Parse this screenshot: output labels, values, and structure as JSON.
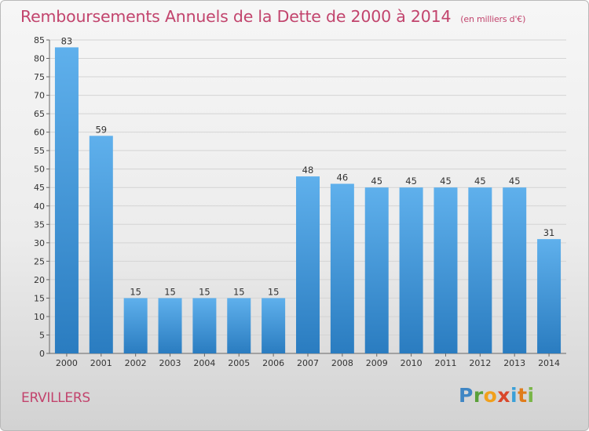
{
  "chart_data": {
    "type": "bar",
    "title": "Remboursements Annuels de la Dette de 2000 à 2014",
    "unit_note": "(en milliers d'€)",
    "categories": [
      "2000",
      "2001",
      "2002",
      "2003",
      "2004",
      "2005",
      "2006",
      "2007",
      "2008",
      "2009",
      "2010",
      "2011",
      "2012",
      "2013",
      "2014"
    ],
    "values": [
      83,
      59,
      15,
      15,
      15,
      15,
      15,
      48,
      46,
      45,
      45,
      45,
      45,
      45,
      31
    ],
    "ylim": [
      0,
      85
    ],
    "yticks": [
      0,
      5,
      10,
      15,
      20,
      25,
      30,
      35,
      40,
      45,
      50,
      55,
      60,
      65,
      70,
      75,
      80,
      85
    ],
    "grid": true,
    "bar_color_top": "#5fb0ec",
    "bar_color_bottom": "#2a7cc0",
    "title_color": "#c2446d"
  },
  "footer": {
    "commune": "ERVILLERS",
    "logo_letters": [
      "P",
      "r",
      "o",
      "x",
      "i",
      "t",
      "i"
    ]
  }
}
